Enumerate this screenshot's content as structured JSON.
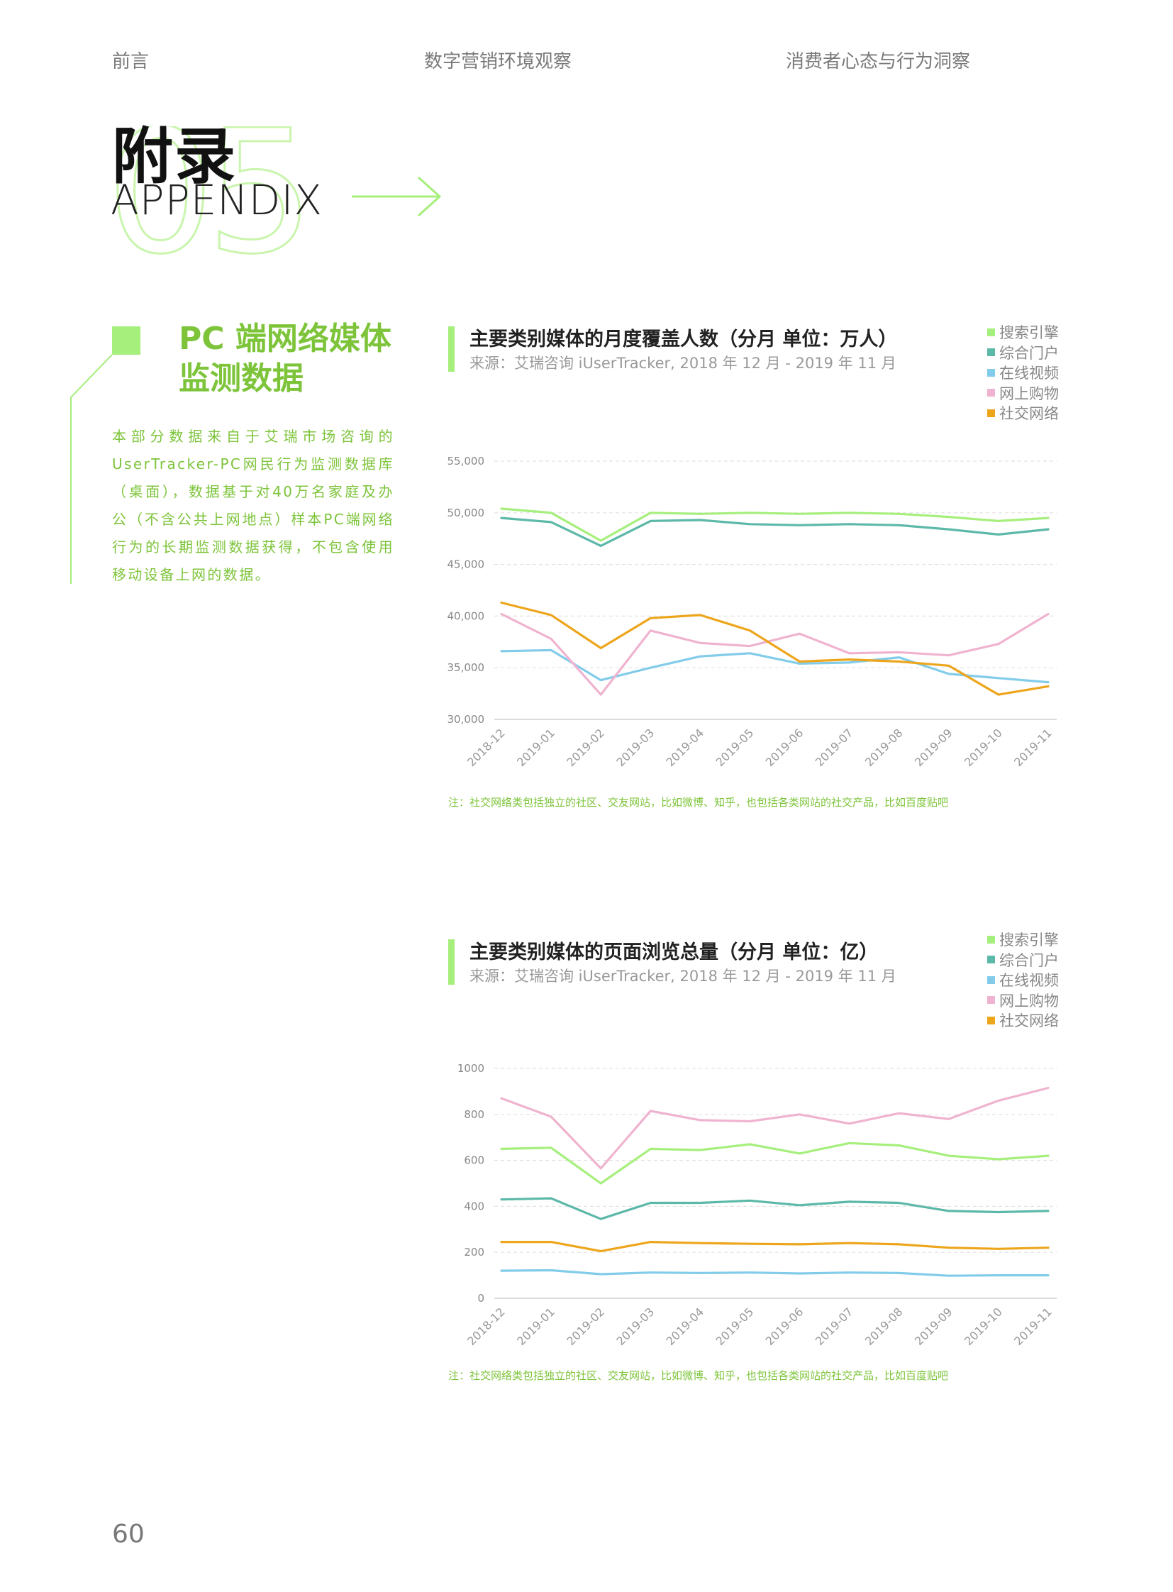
{
  "nav": [
    "前言",
    "数字营销环境观察",
    "消费者心态与行为洞察"
  ],
  "hero": {
    "title": "附录",
    "subtitle": "APPENDIX",
    "number": "05"
  },
  "section": {
    "heading": "PC 端网络媒体监测数据",
    "description": "本部分数据来自于艾瑞市场咨询的UserTracker-PC网民行为监测数据库（桌面），数据基于对40万名家庭及办公（不含公共上网地点）样本PC端网络行为的长期监测数据获得，不包含使用移动设备上网的数据。"
  },
  "page_number": "60",
  "colors": {
    "accent": "#7dc43a",
    "search": "#a6ef7c",
    "portal": "#5cb8a8",
    "video": "#82ccea",
    "shopping": "#f0b3cf",
    "social": "#eda51c"
  },
  "chart_data": [
    {
      "type": "line",
      "title": "主要类别媒体的月度覆盖人数（分月 单位：万人）",
      "source": "来源：艾瑞咨询 iUserTracker, 2018 年 12 月 - 2019 年 11 月",
      "note": "注：社交网络类包括独立的社区、交友网站，比如微博、知乎，也包括各类网站的社交产品，比如百度贴吧",
      "categories": [
        "2018-12",
        "2019-01",
        "2019-02",
        "2019-03",
        "2019-04",
        "2019-05",
        "2019-06",
        "2019-07",
        "2019-08",
        "2019-09",
        "2019-10",
        "2019-11"
      ],
      "ylim": [
        30000,
        55000
      ],
      "yticks": [
        30000,
        35000,
        40000,
        45000,
        50000,
        55000
      ],
      "ytick_labels": [
        "30,000",
        "35,000",
        "40,000",
        "45,000",
        "50,000",
        "55,000"
      ],
      "grid": true,
      "legend": "top-right",
      "series": [
        {
          "name": "搜索引擎",
          "color": "#a6ef7c",
          "values": [
            50400,
            50000,
            47300,
            50000,
            49900,
            50000,
            49900,
            50000,
            49900,
            49600,
            49200,
            49500
          ]
        },
        {
          "name": "综合门户",
          "color": "#5cb8a8",
          "values": [
            49500,
            49100,
            46800,
            49200,
            49300,
            48900,
            48800,
            48900,
            48800,
            48400,
            47900,
            48400
          ]
        },
        {
          "name": "在线视频",
          "color": "#82ccea",
          "values": [
            36600,
            36700,
            33800,
            35000,
            36100,
            36400,
            35400,
            35500,
            36000,
            34400,
            34000,
            33600
          ]
        },
        {
          "name": "网上购物",
          "color": "#f0b3cf",
          "values": [
            40200,
            37800,
            32400,
            38600,
            37400,
            37100,
            38300,
            36400,
            36500,
            36200,
            37300,
            40200
          ]
        },
        {
          "name": "社交网络",
          "color": "#eda51c",
          "values": [
            41300,
            40100,
            36900,
            39800,
            40100,
            38600,
            35600,
            35800,
            35600,
            35200,
            32400,
            33200
          ]
        }
      ]
    },
    {
      "type": "line",
      "title": "主要类别媒体的页面浏览总量（分月 单位：亿）",
      "source": "来源：艾瑞咨询 iUserTracker, 2018 年 12 月 - 2019 年 11 月",
      "note": "注：社交网络类包括独立的社区、交友网站，比如微博、知乎，也包括各类网站的社交产品，比如百度贴吧",
      "categories": [
        "2018-12",
        "2019-01",
        "2019-02",
        "2019-03",
        "2019-04",
        "2019-05",
        "2019-06",
        "2019-07",
        "2019-08",
        "2019-09",
        "2019-10",
        "2019-11"
      ],
      "ylim": [
        0,
        1000
      ],
      "yticks": [
        0,
        200,
        400,
        600,
        800,
        1000
      ],
      "ytick_labels": [
        "0",
        "200",
        "400",
        "600",
        "800",
        "1000"
      ],
      "grid": true,
      "legend": "top-right",
      "series": [
        {
          "name": "搜索引擎",
          "color": "#a6ef7c",
          "values": [
            650,
            655,
            500,
            650,
            645,
            670,
            630,
            675,
            665,
            620,
            605,
            620
          ]
        },
        {
          "name": "综合门户",
          "color": "#5cb8a8",
          "values": [
            430,
            435,
            345,
            415,
            415,
            425,
            405,
            420,
            415,
            380,
            375,
            380
          ]
        },
        {
          "name": "在线视频",
          "color": "#82ccea",
          "values": [
            120,
            122,
            105,
            112,
            110,
            112,
            108,
            112,
            110,
            98,
            100,
            100
          ]
        },
        {
          "name": "网上购物",
          "color": "#f0b3cf",
          "values": [
            870,
            790,
            565,
            815,
            775,
            770,
            800,
            760,
            805,
            780,
            860,
            915
          ]
        },
        {
          "name": "社交网络",
          "color": "#eda51c",
          "values": [
            245,
            245,
            205,
            245,
            240,
            237,
            235,
            240,
            235,
            220,
            215,
            220
          ]
        }
      ]
    }
  ]
}
